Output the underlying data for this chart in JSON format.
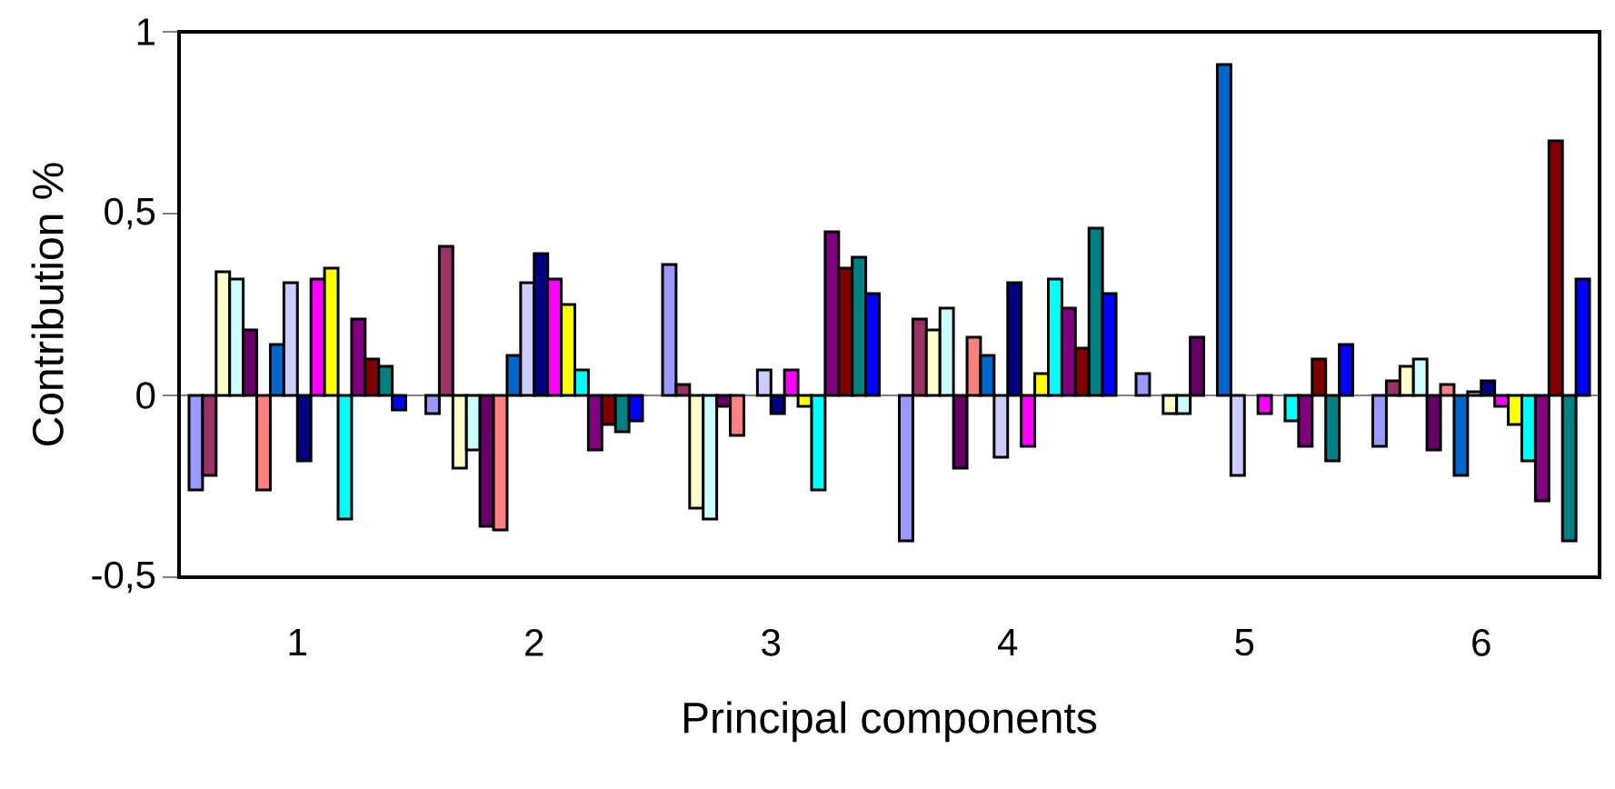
{
  "chart_data": {
    "type": "bar",
    "xlabel": "Principal components",
    "ylabel": "Contribution %",
    "categories": [
      "1",
      "2",
      "3",
      "4",
      "5",
      "6"
    ],
    "ylim": [
      -0.5,
      1
    ],
    "yticks": [
      {
        "value": -0.5,
        "label": "-0,5"
      },
      0,
      {
        "value": 0.5,
        "label": "0,5"
      },
      1
    ],
    "series": [
      {
        "color": "#9999ff",
        "values": [
          -0.26,
          -0.05,
          0.36,
          -0.4,
          0.06,
          -0.14
        ]
      },
      {
        "color": "#993366",
        "values": [
          -0.22,
          0.41,
          0.03,
          0.21,
          null,
          0.04
        ]
      },
      {
        "color": "#ffffcc",
        "values": [
          0.34,
          -0.2,
          -0.31,
          0.18,
          -0.05,
          0.08
        ]
      },
      {
        "color": "#ccffff",
        "values": [
          0.32,
          -0.15,
          -0.34,
          0.24,
          -0.05,
          0.1
        ]
      },
      {
        "color": "#660066",
        "values": [
          0.18,
          -0.36,
          -0.03,
          -0.2,
          0.16,
          -0.15
        ]
      },
      {
        "color": "#ff8080",
        "values": [
          -0.26,
          -0.37,
          -0.11,
          0.16,
          null,
          0.03
        ]
      },
      {
        "color": "#0066cc",
        "values": [
          0.14,
          0.11,
          null,
          0.11,
          0.91,
          -0.22
        ]
      },
      {
        "color": "#ccccff",
        "values": [
          0.31,
          0.31,
          0.07,
          -0.17,
          -0.22,
          0.01
        ]
      },
      {
        "color": "#000080",
        "values": [
          -0.18,
          0.39,
          -0.05,
          0.31,
          null,
          0.04
        ]
      },
      {
        "color": "#ff00ff",
        "values": [
          0.32,
          0.32,
          0.07,
          -0.14,
          -0.05,
          -0.03
        ]
      },
      {
        "color": "#ffff00",
        "values": [
          0.35,
          0.25,
          -0.03,
          0.06,
          null,
          -0.08
        ]
      },
      {
        "color": "#00ffff",
        "values": [
          -0.34,
          0.07,
          -0.26,
          0.32,
          -0.07,
          -0.18
        ]
      },
      {
        "color": "#800080",
        "values": [
          0.21,
          -0.15,
          0.45,
          0.24,
          -0.14,
          -0.29
        ]
      },
      {
        "color": "#800000",
        "values": [
          0.1,
          -0.08,
          0.35,
          0.13,
          0.1,
          0.7
        ]
      },
      {
        "color": "#008080",
        "values": [
          0.08,
          -0.1,
          0.38,
          0.46,
          -0.18,
          -0.4
        ]
      },
      {
        "color": "#0000ff",
        "values": [
          -0.04,
          -0.07,
          0.28,
          0.28,
          0.14,
          0.32
        ]
      }
    ]
  }
}
